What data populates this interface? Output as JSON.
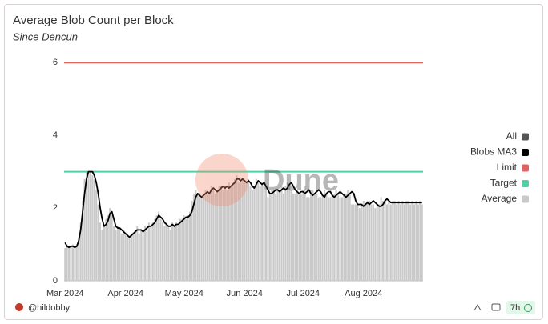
{
  "chart_data": {
    "type": "bar-line",
    "title": "Average Blob Count per Block",
    "subtitle": "Since Dencun",
    "watermark": "Dune",
    "author": "@hildobby",
    "age": "7h",
    "legend_all": "All",
    "legend_all_color": "#555555",
    "categories": [
      "Mar 2024",
      null,
      null,
      null,
      null,
      null,
      null,
      null,
      null,
      null,
      null,
      null,
      null,
      null,
      null,
      null,
      null,
      null,
      null,
      null,
      null,
      null,
      null,
      null,
      null,
      null,
      null,
      null,
      null,
      null,
      null,
      "Apr 2024",
      null,
      null,
      null,
      null,
      null,
      null,
      null,
      null,
      null,
      null,
      null,
      null,
      null,
      null,
      null,
      null,
      null,
      null,
      null,
      null,
      null,
      null,
      null,
      null,
      null,
      null,
      null,
      null,
      null,
      "May 2024",
      null,
      null,
      null,
      null,
      null,
      null,
      null,
      null,
      null,
      null,
      null,
      null,
      null,
      null,
      null,
      null,
      null,
      null,
      null,
      null,
      null,
      null,
      null,
      null,
      null,
      null,
      null,
      null,
      null,
      null,
      "Jun 2024",
      null,
      null,
      null,
      null,
      null,
      null,
      null,
      null,
      null,
      null,
      null,
      null,
      null,
      null,
      null,
      null,
      null,
      null,
      null,
      null,
      null,
      null,
      null,
      null,
      null,
      null,
      null,
      null,
      null,
      "Jul 2024",
      null,
      null,
      null,
      null,
      null,
      null,
      null,
      null,
      null,
      null,
      null,
      null,
      null,
      null,
      null,
      null,
      null,
      null,
      null,
      null,
      null,
      null,
      null,
      null,
      null,
      null,
      null,
      null,
      null,
      null,
      "Aug 2024",
      null,
      null,
      null,
      null,
      null,
      null,
      null,
      null,
      null,
      null,
      null,
      null,
      null,
      null,
      null,
      null,
      null,
      null,
      null,
      null,
      null,
      null,
      null,
      null,
      null,
      null,
      null,
      null,
      null,
      null
    ],
    "series": [
      {
        "name": "Average",
        "color": "#c9c9c9",
        "kind": "bar",
        "values": [
          0.9,
          1.0,
          0.9,
          0.95,
          1.0,
          0.9,
          0.95,
          1.2,
          1.6,
          2.2,
          2.8,
          3.0,
          3.0,
          3.0,
          2.9,
          2.8,
          2.5,
          2.1,
          1.6,
          1.4,
          1.5,
          1.7,
          1.8,
          2.0,
          1.8,
          1.5,
          1.4,
          1.5,
          1.4,
          1.3,
          1.4,
          1.3,
          1.2,
          1.2,
          1.3,
          1.3,
          1.4,
          1.5,
          1.3,
          1.4,
          1.4,
          1.5,
          1.4,
          1.6,
          1.5,
          1.6,
          1.7,
          1.8,
          1.9,
          1.7,
          1.6,
          1.5,
          1.6,
          1.5,
          1.4,
          1.6,
          1.5,
          1.6,
          1.5,
          1.7,
          1.7,
          1.8,
          1.7,
          1.8,
          1.9,
          2.2,
          2.4,
          2.5,
          2.4,
          2.3,
          2.3,
          2.4,
          2.5,
          2.4,
          2.4,
          2.6,
          2.5,
          2.4,
          2.5,
          2.6,
          2.6,
          2.5,
          2.6,
          2.5,
          2.7,
          2.6,
          2.7,
          2.8,
          2.9,
          2.7,
          2.8,
          2.8,
          2.7,
          2.7,
          2.8,
          2.6,
          2.5,
          2.6,
          2.8,
          2.7,
          2.6,
          2.7,
          2.6,
          2.5,
          2.3,
          2.4,
          2.5,
          2.5,
          2.4,
          2.5,
          2.5,
          2.6,
          2.4,
          2.6,
          2.7,
          2.6,
          2.5,
          2.4,
          2.4,
          2.5,
          2.4,
          2.4,
          2.5,
          2.6,
          2.3,
          2.3,
          2.5,
          2.5,
          2.4,
          2.4,
          2.3,
          2.3,
          2.4,
          2.5,
          2.4,
          2.3,
          2.3,
          2.4,
          2.4,
          2.5,
          2.4,
          2.3,
          2.3,
          2.4,
          2.4,
          2.5,
          2.4,
          2.1,
          2.1,
          2.1,
          2.1,
          2.0,
          2.1,
          2.2,
          2.1,
          2.2,
          2.2,
          2.1,
          2.1,
          2.0,
          2.1,
          2.1,
          2.3,
          2.2,
          2.2,
          2.1,
          2.2,
          2.1,
          2.2,
          2.2,
          2.1,
          2.2,
          2.1,
          2.2,
          2.1,
          2.2,
          2.2,
          2.1,
          2.2,
          2.1,
          2.2,
          2.1,
          2.2,
          2.1
        ]
      },
      {
        "name": "Blobs MA3",
        "color": "#000000",
        "kind": "line",
        "values": [
          1.05,
          0.95,
          0.92,
          0.95,
          0.95,
          0.92,
          0.95,
          1.1,
          1.4,
          1.9,
          2.4,
          2.8,
          3.0,
          3.0,
          3.0,
          2.9,
          2.7,
          2.4,
          2.0,
          1.7,
          1.5,
          1.55,
          1.65,
          1.85,
          1.9,
          1.7,
          1.5,
          1.45,
          1.45,
          1.4,
          1.35,
          1.3,
          1.25,
          1.2,
          1.25,
          1.3,
          1.35,
          1.4,
          1.4,
          1.4,
          1.35,
          1.4,
          1.45,
          1.5,
          1.5,
          1.55,
          1.6,
          1.7,
          1.8,
          1.75,
          1.7,
          1.6,
          1.55,
          1.5,
          1.5,
          1.55,
          1.5,
          1.55,
          1.55,
          1.6,
          1.65,
          1.7,
          1.75,
          1.75,
          1.8,
          1.9,
          2.1,
          2.3,
          2.4,
          2.35,
          2.3,
          2.35,
          2.4,
          2.45,
          2.4,
          2.5,
          2.55,
          2.5,
          2.45,
          2.5,
          2.55,
          2.6,
          2.55,
          2.6,
          2.55,
          2.6,
          2.65,
          2.7,
          2.8,
          2.8,
          2.75,
          2.8,
          2.75,
          2.7,
          2.75,
          2.7,
          2.6,
          2.55,
          2.65,
          2.75,
          2.7,
          2.65,
          2.7,
          2.6,
          2.5,
          2.4,
          2.4,
          2.45,
          2.5,
          2.5,
          2.45,
          2.5,
          2.55,
          2.5,
          2.55,
          2.65,
          2.7,
          2.6,
          2.5,
          2.45,
          2.4,
          2.45,
          2.45,
          2.4,
          2.45,
          2.5,
          2.4,
          2.35,
          2.4,
          2.45,
          2.5,
          2.45,
          2.35,
          2.3,
          2.4,
          2.45,
          2.45,
          2.35,
          2.3,
          2.35,
          2.4,
          2.45,
          2.4,
          2.35,
          2.3,
          2.35,
          2.4,
          2.45,
          2.4,
          2.2,
          2.1,
          2.1,
          2.1,
          2.05,
          2.1,
          2.15,
          2.1,
          2.15,
          2.2,
          2.15,
          2.1,
          2.05,
          2.05,
          2.1,
          2.2,
          2.25,
          2.2,
          2.15,
          2.15,
          2.15,
          2.15,
          2.15,
          2.15,
          2.15,
          2.15,
          2.15,
          2.15,
          2.15,
          2.15,
          2.15,
          2.15,
          2.15,
          2.15,
          2.15
        ]
      }
    ],
    "reference_lines": [
      {
        "name": "Limit",
        "color": "#e0625c",
        "value": 6
      },
      {
        "name": "Target",
        "color": "#4fd1a5",
        "value": 3
      }
    ],
    "ylim": [
      0,
      6.4
    ],
    "yticks": [
      0,
      2,
      4,
      6
    ]
  }
}
